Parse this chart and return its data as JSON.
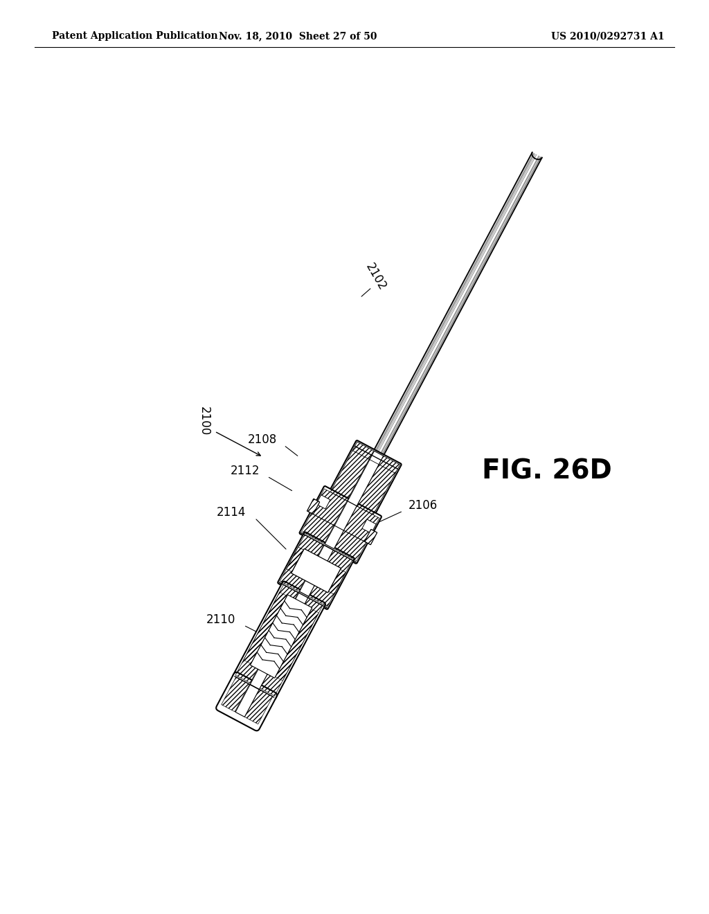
{
  "bg_color": "#ffffff",
  "header_left": "Patent Application Publication",
  "header_mid": "Nov. 18, 2010  Sheet 27 of 50",
  "header_right": "US 2010/0292731 A1",
  "fig_label": "FIG. 26D",
  "header_fontsize": 10,
  "fig_fontsize": 28,
  "label_fontsize": 12
}
